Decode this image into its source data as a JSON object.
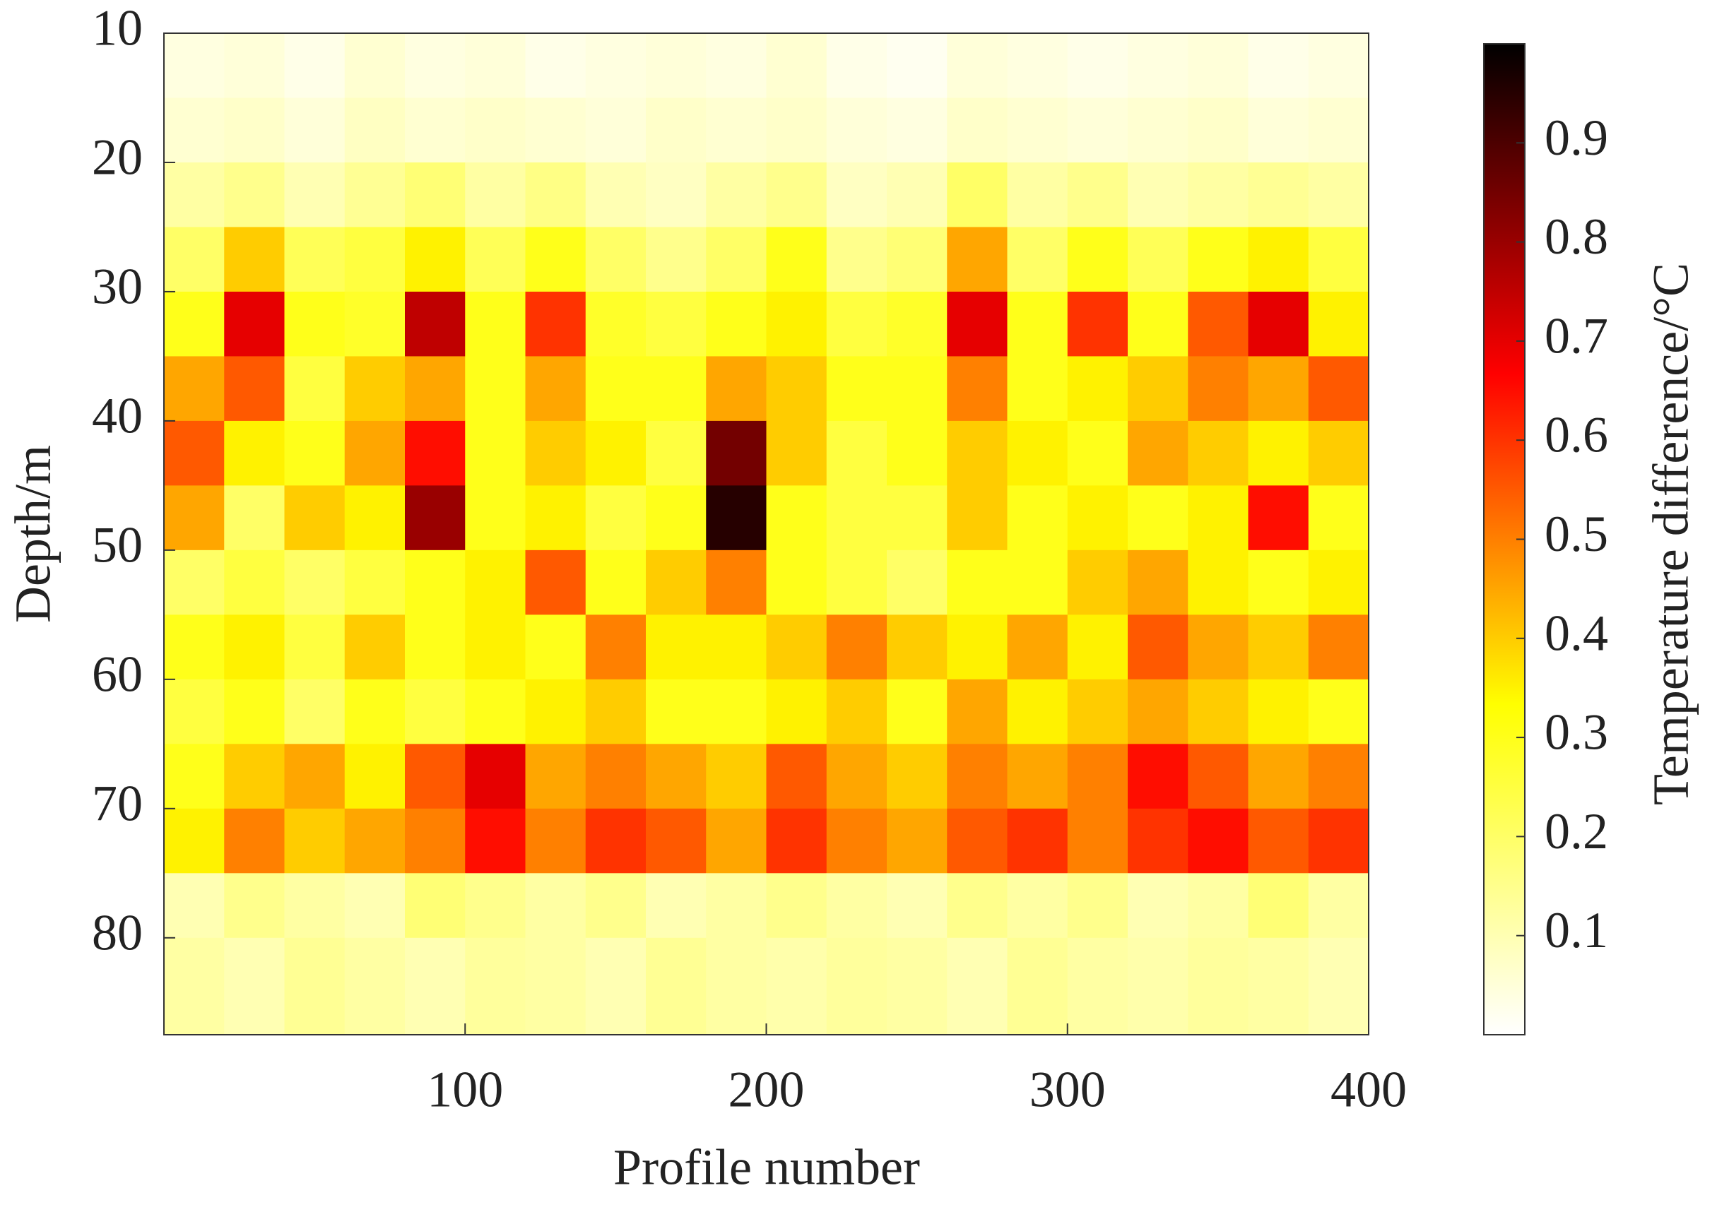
{
  "chart_data": {
    "type": "heatmap",
    "xlabel": "Profile number",
    "ylabel": "Depth/m",
    "colorbar_label": "Temperature difference/°C",
    "x": [
      10,
      30,
      50,
      70,
      90,
      110,
      130,
      150,
      170,
      190,
      210,
      230,
      250,
      270,
      290,
      310,
      330,
      350,
      370,
      390
    ],
    "y": [
      12.5,
      17.5,
      22.5,
      27.5,
      32.5,
      37.5,
      42.5,
      47.5,
      52.5,
      57.5,
      62.5,
      67.5,
      72.5,
      77.5,
      82.5
    ],
    "z": [
      [
        0.04,
        0.05,
        0.03,
        0.06,
        0.04,
        0.05,
        0.03,
        0.04,
        0.05,
        0.04,
        0.06,
        0.03,
        0.02,
        0.05,
        0.04,
        0.03,
        0.04,
        0.05,
        0.03,
        0.04
      ],
      [
        0.06,
        0.07,
        0.05,
        0.08,
        0.06,
        0.07,
        0.06,
        0.05,
        0.07,
        0.06,
        0.07,
        0.05,
        0.04,
        0.07,
        0.06,
        0.05,
        0.06,
        0.07,
        0.05,
        0.06
      ],
      [
        0.12,
        0.15,
        0.1,
        0.14,
        0.18,
        0.12,
        0.16,
        0.1,
        0.08,
        0.12,
        0.15,
        0.08,
        0.1,
        0.2,
        0.12,
        0.15,
        0.1,
        0.12,
        0.14,
        0.12
      ],
      [
        0.2,
        0.4,
        0.22,
        0.25,
        0.35,
        0.22,
        0.3,
        0.2,
        0.15,
        0.2,
        0.3,
        0.15,
        0.18,
        0.45,
        0.2,
        0.3,
        0.22,
        0.3,
        0.35,
        0.25
      ],
      [
        0.3,
        0.7,
        0.3,
        0.28,
        0.75,
        0.3,
        0.6,
        0.28,
        0.25,
        0.3,
        0.35,
        0.25,
        0.28,
        0.7,
        0.3,
        0.6,
        0.3,
        0.55,
        0.7,
        0.35
      ],
      [
        0.45,
        0.55,
        0.25,
        0.4,
        0.45,
        0.3,
        0.45,
        0.3,
        0.3,
        0.45,
        0.4,
        0.3,
        0.3,
        0.5,
        0.3,
        0.35,
        0.4,
        0.5,
        0.45,
        0.55
      ],
      [
        0.55,
        0.35,
        0.3,
        0.45,
        0.65,
        0.3,
        0.4,
        0.35,
        0.25,
        0.85,
        0.4,
        0.25,
        0.3,
        0.4,
        0.35,
        0.3,
        0.45,
        0.4,
        0.35,
        0.4
      ],
      [
        0.45,
        0.2,
        0.4,
        0.35,
        0.8,
        0.3,
        0.35,
        0.25,
        0.3,
        0.95,
        0.3,
        0.25,
        0.25,
        0.4,
        0.3,
        0.35,
        0.3,
        0.35,
        0.65,
        0.3
      ],
      [
        0.2,
        0.25,
        0.2,
        0.25,
        0.3,
        0.35,
        0.55,
        0.3,
        0.4,
        0.5,
        0.3,
        0.25,
        0.2,
        0.3,
        0.3,
        0.4,
        0.45,
        0.35,
        0.3,
        0.35
      ],
      [
        0.3,
        0.35,
        0.25,
        0.4,
        0.3,
        0.35,
        0.3,
        0.5,
        0.35,
        0.35,
        0.4,
        0.5,
        0.4,
        0.35,
        0.45,
        0.35,
        0.55,
        0.45,
        0.4,
        0.5
      ],
      [
        0.25,
        0.3,
        0.2,
        0.3,
        0.25,
        0.3,
        0.35,
        0.4,
        0.3,
        0.3,
        0.35,
        0.4,
        0.3,
        0.45,
        0.35,
        0.4,
        0.45,
        0.4,
        0.35,
        0.3
      ],
      [
        0.3,
        0.4,
        0.45,
        0.35,
        0.55,
        0.7,
        0.45,
        0.5,
        0.45,
        0.4,
        0.55,
        0.45,
        0.4,
        0.5,
        0.45,
        0.5,
        0.65,
        0.55,
        0.45,
        0.5
      ],
      [
        0.35,
        0.5,
        0.4,
        0.45,
        0.5,
        0.65,
        0.5,
        0.6,
        0.55,
        0.45,
        0.6,
        0.5,
        0.45,
        0.55,
        0.6,
        0.5,
        0.6,
        0.65,
        0.55,
        0.6
      ],
      [
        0.1,
        0.15,
        0.12,
        0.1,
        0.18,
        0.15,
        0.12,
        0.15,
        0.1,
        0.12,
        0.15,
        0.12,
        0.1,
        0.15,
        0.12,
        0.15,
        0.1,
        0.12,
        0.18,
        0.12
      ],
      [
        0.12,
        0.1,
        0.14,
        0.12,
        0.1,
        0.13,
        0.12,
        0.1,
        0.14,
        0.12,
        0.11,
        0.13,
        0.12,
        0.1,
        0.14,
        0.12,
        0.11,
        0.13,
        0.12,
        0.1
      ]
    ],
    "xlim": [
      0,
      400
    ],
    "xticks": [
      100,
      200,
      300,
      400
    ],
    "ylim": [
      10,
      87.5
    ],
    "yticks": [
      10,
      20,
      30,
      40,
      50,
      60,
      70,
      80
    ],
    "y_reversed": true,
    "clim": [
      0,
      1
    ],
    "cticks": [
      0.1,
      0.2,
      0.3,
      0.4,
      0.5,
      0.6,
      0.7,
      0.8,
      0.9
    ],
    "colormap": [
      "#ffffff",
      "#ffff00",
      "#ff0000",
      "#000000"
    ]
  }
}
